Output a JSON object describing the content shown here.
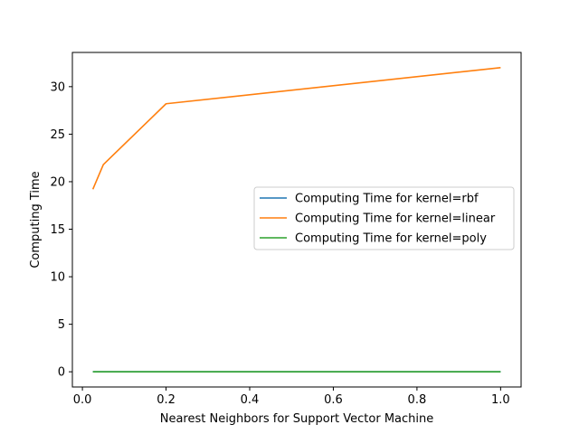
{
  "chart_data": {
    "type": "line",
    "title": "",
    "xlabel": "Nearest Neighbors for Support Vector Machine",
    "ylabel": "Computing Time",
    "xlim": [
      -0.024,
      1.049
    ],
    "ylim": [
      -1.6,
      33.6
    ],
    "xticks": [
      0.0,
      0.2,
      0.4,
      0.6,
      0.8,
      1.0
    ],
    "xtick_labels": [
      "0.0",
      "0.2",
      "0.4",
      "0.6",
      "0.8",
      "1.0"
    ],
    "yticks": [
      0,
      5,
      10,
      15,
      20,
      25,
      30
    ],
    "ytick_labels": [
      "0",
      "5",
      "10",
      "15",
      "20",
      "25",
      "30"
    ],
    "grid": false,
    "legend_position": "center-right",
    "series": [
      {
        "name": "Computing Time for kernel=rbf",
        "color": "#1f77b4",
        "x": [
          0.025,
          0.05,
          0.2,
          1.0
        ],
        "y": [
          0.0,
          0.0,
          0.0,
          0.0
        ]
      },
      {
        "name": "Computing Time for kernel=linear",
        "color": "#ff7f0e",
        "x": [
          0.025,
          0.05,
          0.2,
          1.0
        ],
        "y": [
          19.2,
          21.8,
          28.2,
          32.0
        ]
      },
      {
        "name": "Computing Time for kernel=poly",
        "color": "#2ca02c",
        "x": [
          0.025,
          0.05,
          0.2,
          1.0
        ],
        "y": [
          0.0,
          0.0,
          0.0,
          0.0
        ]
      }
    ]
  }
}
